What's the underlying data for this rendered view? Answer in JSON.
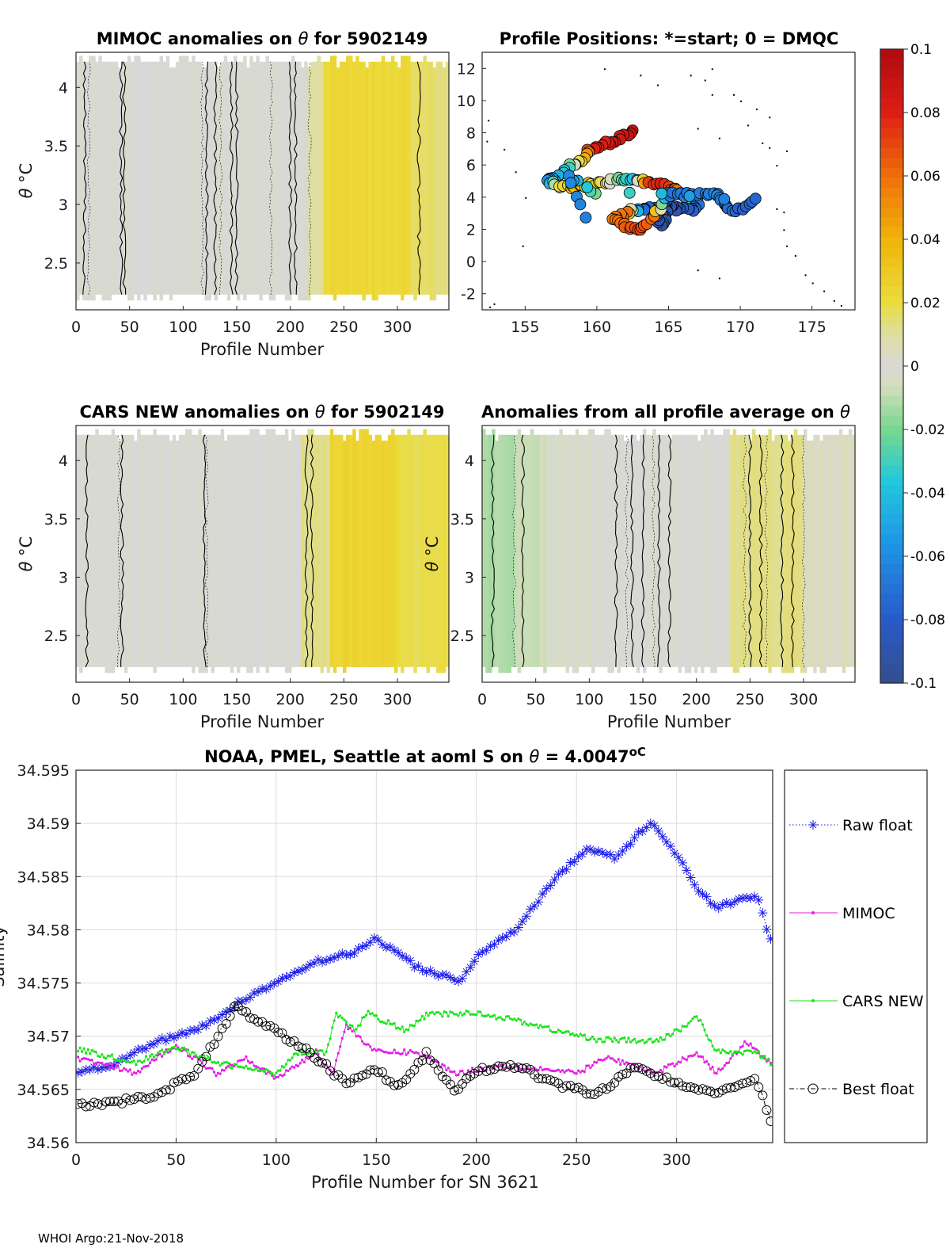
{
  "chart_data": [
    {
      "id": "mimoc",
      "type": "heatmap",
      "title_prefix": "MIMOC anomalies on ",
      "title_symbol": "θ",
      "title_suffix": "  for 5902149",
      "xlabel": "Profile Number",
      "ylabel_symbol": "θ",
      "ylabel_unit": "°C",
      "xlim": [
        0,
        348
      ],
      "ylim": [
        2.1,
        4.3
      ],
      "xticks": [
        0,
        50,
        100,
        150,
        200,
        250,
        300
      ],
      "yticks": [
        2.5,
        3,
        3.5,
        4
      ],
      "band_anomalies": [
        {
          "from": 0,
          "to": 215,
          "value": 0.0
        },
        {
          "from": 215,
          "to": 230,
          "value": 0.01
        },
        {
          "from": 230,
          "to": 310,
          "value": 0.022
        },
        {
          "from": 310,
          "to": 348,
          "value": 0.015
        }
      ],
      "zero_contours_x": [
        8,
        12,
        42,
        45,
        118,
        122,
        130,
        135,
        145,
        150,
        182,
        200,
        205,
        218,
        320
      ]
    },
    {
      "id": "positions",
      "type": "scatter",
      "title": "Profile Positions: *=start; 0 = DMQC",
      "xlim": [
        152,
        178
      ],
      "ylim": [
        -3,
        13
      ],
      "xticks": [
        155,
        160,
        165,
        170,
        175
      ],
      "yticks": [
        -2,
        0,
        2,
        4,
        6,
        8,
        10,
        12
      ],
      "track": [
        {
          "lon": 162.5,
          "lat": 8.2,
          "c": 0.09
        },
        {
          "lon": 161.5,
          "lat": 7.6,
          "c": 0.085
        },
        {
          "lon": 160.5,
          "lat": 7.3,
          "c": 0.08
        },
        {
          "lon": 159.5,
          "lat": 7.0,
          "c": 0.08
        },
        {
          "lon": 159.0,
          "lat": 6.3,
          "c": 0.03
        },
        {
          "lon": 158.0,
          "lat": 5.8,
          "c": -0.03
        },
        {
          "lon": 157.0,
          "lat": 5.2,
          "c": -0.05
        },
        {
          "lon": 156.5,
          "lat": 5.0,
          "c": -0.06
        },
        {
          "lon": 157.5,
          "lat": 4.6,
          "c": 0.02
        },
        {
          "lon": 158.5,
          "lat": 4.6,
          "c": 0.035
        },
        {
          "lon": 159.5,
          "lat": 4.8,
          "c": 0.03
        },
        {
          "lon": 160.5,
          "lat": 4.9,
          "c": 0.015
        },
        {
          "lon": 161.5,
          "lat": 5.1,
          "c": -0.02
        },
        {
          "lon": 162.5,
          "lat": 5.0,
          "c": -0.04
        },
        {
          "lon": 163.5,
          "lat": 5.0,
          "c": 0.07
        },
        {
          "lon": 164.5,
          "lat": 4.8,
          "c": 0.08
        },
        {
          "lon": 165.5,
          "lat": 4.4,
          "c": 0.06
        },
        {
          "lon": 166.5,
          "lat": 4.2,
          "c": 0.05
        },
        {
          "lon": 167.0,
          "lat": 3.6,
          "c": -0.07
        },
        {
          "lon": 166.5,
          "lat": 3.2,
          "c": -0.08
        },
        {
          "lon": 165.5,
          "lat": 3.3,
          "c": -0.09
        },
        {
          "lon": 164.8,
          "lat": 3.6,
          "c": -0.09
        },
        {
          "lon": 164.8,
          "lat": 2.8,
          "c": -0.09
        },
        {
          "lon": 164.5,
          "lat": 2.3,
          "c": -0.095
        },
        {
          "lon": 164.0,
          "lat": 3.2,
          "c": -0.08
        },
        {
          "lon": 163.0,
          "lat": 3.3,
          "c": -0.07
        },
        {
          "lon": 162.0,
          "lat": 3.0,
          "c": 0.06
        },
        {
          "lon": 161.0,
          "lat": 2.6,
          "c": 0.055
        },
        {
          "lon": 162.0,
          "lat": 2.2,
          "c": 0.065
        },
        {
          "lon": 163.0,
          "lat": 2.0,
          "c": 0.07
        },
        {
          "lon": 164.0,
          "lat": 2.8,
          "c": 0.06
        },
        {
          "lon": 165.0,
          "lat": 4.2,
          "c": -0.07
        },
        {
          "lon": 166.0,
          "lat": 4.1,
          "c": -0.068
        },
        {
          "lon": 167.5,
          "lat": 4.3,
          "c": -0.065
        },
        {
          "lon": 168.5,
          "lat": 4.0,
          "c": -0.062
        },
        {
          "lon": 169.0,
          "lat": 3.3,
          "c": -0.07
        },
        {
          "lon": 170.0,
          "lat": 3.2,
          "c": -0.078
        },
        {
          "lon": 171.0,
          "lat": 3.9,
          "c": -0.075
        },
        {
          "lon": 160.0,
          "lat": 4.2,
          "c": -0.02
        },
        {
          "lon": 158.0,
          "lat": 5.4,
          "c": -0.06
        },
        {
          "lon": 159.5,
          "lat": 2.2,
          "c": -0.065
        }
      ],
      "coast_points": [
        [
          152.4,
          8.8
        ],
        [
          152.3,
          7.5
        ],
        [
          153.5,
          7.0
        ],
        [
          154.3,
          5.6
        ],
        [
          155.0,
          4.0
        ],
        [
          154.8,
          1.0
        ],
        [
          152.5,
          -2.8
        ],
        [
          152.8,
          -2.6
        ],
        [
          163.0,
          11.6
        ],
        [
          164.2,
          11.0
        ],
        [
          166.5,
          11.6
        ],
        [
          167.5,
          11.3
        ],
        [
          168.0,
          10.4
        ],
        [
          169.5,
          10.4
        ],
        [
          170.0,
          10.0
        ],
        [
          171.1,
          9.5
        ],
        [
          172.0,
          9.0
        ],
        [
          170.5,
          8.5
        ],
        [
          171.5,
          7.4
        ],
        [
          172.0,
          7.1
        ],
        [
          173.2,
          6.9
        ],
        [
          167.0,
          8.3
        ],
        [
          168.5,
          7.7
        ],
        [
          172.5,
          6.0
        ],
        [
          173.0,
          3.1
        ],
        [
          173.0,
          2.0
        ],
        [
          173.2,
          1.0
        ],
        [
          173.8,
          0.4
        ],
        [
          174.5,
          -0.8
        ],
        [
          175.0,
          -1.3
        ],
        [
          175.8,
          -1.8
        ],
        [
          176.5,
          -2.4
        ],
        [
          177.0,
          -2.7
        ],
        [
          172.5,
          3.3
        ],
        [
          168.5,
          -1.0
        ],
        [
          167.0,
          -0.5
        ],
        [
          168.0,
          12.0
        ],
        [
          160.5,
          12.0
        ]
      ]
    },
    {
      "id": "cars",
      "type": "heatmap",
      "title_prefix": "CARS NEW anomalies on ",
      "title_symbol": "θ",
      "title_suffix": " for 5902149",
      "xlabel": "Profile Number",
      "ylabel_symbol": "θ",
      "ylabel_unit": "°C",
      "xlim": [
        0,
        348
      ],
      "ylim": [
        2.1,
        4.3
      ],
      "xticks": [
        0,
        50,
        100,
        150,
        200,
        250,
        300
      ],
      "yticks": [
        2.5,
        3,
        3.5,
        4
      ],
      "band_anomalies": [
        {
          "from": 0,
          "to": 210,
          "value": 0.0
        },
        {
          "from": 210,
          "to": 235,
          "value": 0.012
        },
        {
          "from": 235,
          "to": 300,
          "value": 0.024
        },
        {
          "from": 300,
          "to": 348,
          "value": 0.018
        }
      ],
      "zero_contours_x": [
        10,
        40,
        43,
        120,
        122,
        215,
        220
      ]
    },
    {
      "id": "avg",
      "type": "heatmap",
      "title_prefix": "Anomalies from all profile average on ",
      "title_symbol": "θ",
      "title_suffix": "",
      "xlabel": "Profile Number",
      "ylabel_symbol": "θ",
      "ylabel_unit": "°C",
      "xlim": [
        0,
        348
      ],
      "ylim": [
        2.1,
        4.3
      ],
      "xticks": [
        0,
        50,
        100,
        150,
        200,
        250,
        300
      ],
      "yticks": [
        2.5,
        3,
        3.5,
        4
      ],
      "band_anomalies": [
        {
          "from": 0,
          "to": 30,
          "value": -0.012
        },
        {
          "from": 30,
          "to": 60,
          "value": -0.008
        },
        {
          "from": 60,
          "to": 100,
          "value": -0.003
        },
        {
          "from": 100,
          "to": 230,
          "value": 0.0
        },
        {
          "from": 230,
          "to": 300,
          "value": 0.012
        },
        {
          "from": 300,
          "to": 348,
          "value": 0.004
        }
      ],
      "zero_contours_x": [
        10,
        30,
        38,
        125,
        135,
        140,
        150,
        160,
        165,
        175,
        245,
        250,
        260,
        265,
        280,
        290,
        300
      ]
    },
    {
      "id": "salinity",
      "type": "line",
      "title_prefix": "NOAA, PMEL, Seattle at aoml S on ",
      "title_symbol": "θ",
      "title_value": " = 4.0047",
      "title_unit": "oC",
      "xlabel": "Profile Number for SN 3621",
      "ylabel": "Salinity",
      "xlim": [
        0,
        348
      ],
      "ylim": [
        34.56,
        34.595
      ],
      "xticks": [
        0,
        50,
        100,
        150,
        200,
        250,
        300
      ],
      "ytick_labels": [
        "34.56",
        "34.565",
        "34.57",
        "34.575",
        "34.58",
        "34.585",
        "34.59",
        "34.595"
      ],
      "series": [
        {
          "name": "Raw float",
          "color": "#1f1fe6",
          "marker": "star",
          "linestyle": "dotted",
          "knots": [
            [
              0,
              34.5665
            ],
            [
              20,
              34.5675
            ],
            [
              40,
              34.5695
            ],
            [
              60,
              34.5705
            ],
            [
              80,
              34.573
            ],
            [
              100,
              34.575
            ],
            [
              120,
              34.577
            ],
            [
              140,
              34.578
            ],
            [
              150,
              34.5792
            ],
            [
              170,
              34.5765
            ],
            [
              192,
              34.5752
            ],
            [
              200,
              34.5775
            ],
            [
              220,
              34.58
            ],
            [
              240,
              34.585
            ],
            [
              255,
              34.5875
            ],
            [
              270,
              34.5868
            ],
            [
              287,
              34.5902
            ],
            [
              300,
              34.587
            ],
            [
              310,
              34.584
            ],
            [
              320,
              34.582
            ],
            [
              333,
              34.583
            ],
            [
              340,
              34.5832
            ],
            [
              347,
              34.579
            ]
          ]
        },
        {
          "name": "MIMOC",
          "color": "#e61ee6",
          "marker": "dot",
          "linestyle": "solid",
          "knots": [
            [
              0,
              34.568
            ],
            [
              30,
              34.5665
            ],
            [
              50,
              34.5692
            ],
            [
              70,
              34.5665
            ],
            [
              85,
              34.568
            ],
            [
              100,
              34.566
            ],
            [
              120,
              34.5685
            ],
            [
              128,
              34.5665
            ],
            [
              135,
              34.571
            ],
            [
              150,
              34.5685
            ],
            [
              170,
              34.5685
            ],
            [
              190,
              34.5665
            ],
            [
              210,
              34.5672
            ],
            [
              230,
              34.567
            ],
            [
              250,
              34.5665
            ],
            [
              265,
              34.568
            ],
            [
              290,
              34.5665
            ],
            [
              310,
              34.5685
            ],
            [
              320,
              34.5665
            ],
            [
              335,
              34.5695
            ],
            [
              347,
              34.5675
            ]
          ]
        },
        {
          "name": "CARS NEW",
          "color": "#19e619",
          "marker": "dot",
          "linestyle": "solid",
          "knots": [
            [
              0,
              34.5688
            ],
            [
              30,
              34.5675
            ],
            [
              50,
              34.569
            ],
            [
              70,
              34.5675
            ],
            [
              100,
              34.5665
            ],
            [
              110,
              34.5685
            ],
            [
              125,
              34.5685
            ],
            [
              130,
              34.572
            ],
            [
              140,
              34.5705
            ],
            [
              145,
              34.5722
            ],
            [
              165,
              34.5705
            ],
            [
              175,
              34.572
            ],
            [
              200,
              34.5722
            ],
            [
              220,
              34.5715
            ],
            [
              240,
              34.5705
            ],
            [
              260,
              34.5697
            ],
            [
              290,
              34.5695
            ],
            [
              305,
              34.571
            ],
            [
              310,
              34.572
            ],
            [
              320,
              34.5685
            ],
            [
              340,
              34.5685
            ],
            [
              347,
              34.5675
            ]
          ]
        },
        {
          "name": "Best float",
          "color": "#000000",
          "marker": "circle",
          "linestyle": "dashdot",
          "knots": [
            [
              0,
              34.5635
            ],
            [
              20,
              34.5638
            ],
            [
              40,
              34.5645
            ],
            [
              60,
              34.5665
            ],
            [
              80,
              34.573
            ],
            [
              90,
              34.5715
            ],
            [
              100,
              34.5705
            ],
            [
              120,
              34.568
            ],
            [
              135,
              34.5655
            ],
            [
              150,
              34.567
            ],
            [
              160,
              34.565
            ],
            [
              175,
              34.5683
            ],
            [
              190,
              34.5648
            ],
            [
              200,
              34.5668
            ],
            [
              220,
              34.5672
            ],
            [
              240,
              34.5655
            ],
            [
              260,
              34.5645
            ],
            [
              280,
              34.5672
            ],
            [
              300,
              34.5655
            ],
            [
              320,
              34.5648
            ],
            [
              340,
              34.566
            ],
            [
              347,
              34.562
            ]
          ]
        }
      ]
    }
  ],
  "colorbar": {
    "ticks": [
      "0.1",
      "0.08",
      "0.06",
      "0.04",
      "0.02",
      "0",
      "-0.02",
      "-0.04",
      "-0.06",
      "-0.08",
      "-0.1"
    ]
  },
  "footer": "WHOI Argo:21-Nov-2018"
}
